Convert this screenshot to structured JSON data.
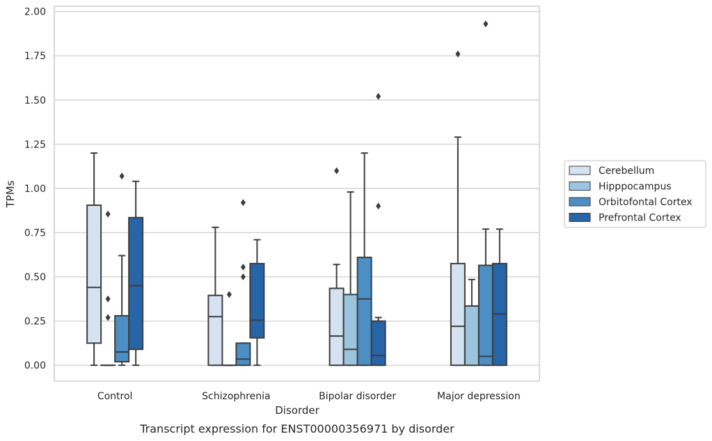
{
  "chart_data": {
    "type": "box",
    "caption": "Transcript expression for ENST00000356971 by disorder",
    "xlabel": "Disorder",
    "ylabel": "TPMs",
    "ylim": [
      -0.09,
      2.03
    ],
    "yticks": [
      "0.00",
      "0.25",
      "0.50",
      "0.75",
      "1.00",
      "1.25",
      "1.50",
      "1.75",
      "2.00"
    ],
    "grid": true,
    "legend_position": "right",
    "categories": [
      "Control",
      "Schizophrenia",
      "Bipolar disorder",
      "Major depression"
    ],
    "series": [
      {
        "name": "Cerebellum",
        "color": "#d4e2f1",
        "boxes": [
          {
            "whislo": 0.0,
            "q1": 0.125,
            "med": 0.44,
            "q3": 0.905,
            "whishi": 1.2,
            "fliers": []
          },
          {
            "whislo": 0.0,
            "q1": 0.0,
            "med": 0.275,
            "q3": 0.395,
            "whishi": 0.78,
            "fliers": []
          },
          {
            "whislo": 0.0,
            "q1": 0.0,
            "med": 0.165,
            "q3": 0.435,
            "whishi": 0.57,
            "fliers": [
              1.1
            ]
          },
          {
            "whislo": 0.0,
            "q1": 0.0,
            "med": 0.22,
            "q3": 0.575,
            "whishi": 1.29,
            "fliers": [
              1.76
            ]
          }
        ]
      },
      {
        "name": "Hipppocampus",
        "color": "#9bc4de",
        "boxes": [
          {
            "whislo": 0.0,
            "q1": 0.0,
            "med": 0.0,
            "q3": 0.0,
            "whishi": 0.0,
            "fliers": [
              0.27,
              0.375,
              0.855
            ]
          },
          {
            "whislo": 0.0,
            "q1": 0.0,
            "med": 0.0,
            "q3": 0.0,
            "whishi": 0.0,
            "fliers": [
              0.4
            ]
          },
          {
            "whislo": 0.0,
            "q1": 0.0,
            "med": 0.09,
            "q3": 0.4,
            "whishi": 0.98,
            "fliers": []
          },
          {
            "whislo": 0.0,
            "q1": 0.0,
            "med": 0.335,
            "q3": 0.335,
            "whishi": 0.485,
            "fliers": []
          }
        ]
      },
      {
        "name": "Orbitofontal Cortex",
        "color": "#4b8fc4",
        "boxes": [
          {
            "whislo": 0.0,
            "q1": 0.02,
            "med": 0.075,
            "q3": 0.28,
            "whishi": 0.62,
            "fliers": [
              1.07
            ]
          },
          {
            "whislo": 0.0,
            "q1": 0.0,
            "med": 0.035,
            "q3": 0.125,
            "whishi": 0.125,
            "fliers": [
              0.5,
              0.555,
              0.92
            ]
          },
          {
            "whislo": 0.0,
            "q1": 0.0,
            "med": 0.375,
            "q3": 0.61,
            "whishi": 1.2,
            "fliers": []
          },
          {
            "whislo": 0.0,
            "q1": 0.0,
            "med": 0.05,
            "q3": 0.565,
            "whishi": 0.77,
            "fliers": [
              1.93
            ]
          }
        ]
      },
      {
        "name": "Prefrontal Cortex",
        "color": "#2565a8",
        "boxes": [
          {
            "whislo": 0.0,
            "q1": 0.09,
            "med": 0.45,
            "q3": 0.835,
            "whishi": 1.04,
            "fliers": []
          },
          {
            "whislo": 0.0,
            "q1": 0.155,
            "med": 0.255,
            "q3": 0.575,
            "whishi": 0.71,
            "fliers": []
          },
          {
            "whislo": 0.0,
            "q1": 0.0,
            "med": 0.055,
            "q3": 0.25,
            "whishi": 0.27,
            "fliers": [
              0.9,
              1.52
            ]
          },
          {
            "whislo": 0.0,
            "q1": 0.0,
            "med": 0.29,
            "q3": 0.575,
            "whishi": 0.77,
            "fliers": []
          }
        ]
      }
    ]
  }
}
